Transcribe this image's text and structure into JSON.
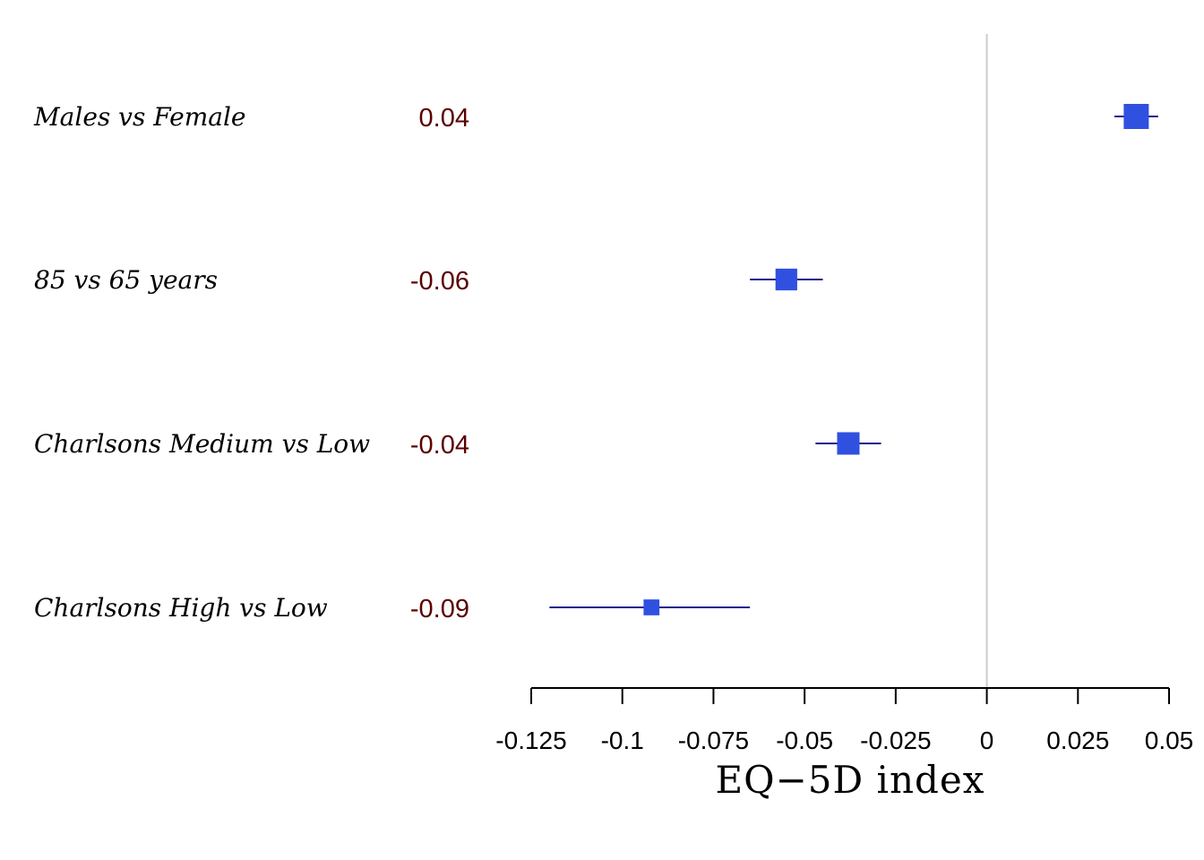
{
  "chart_data": {
    "type": "scatter",
    "subtype": "forest-plot",
    "xlabel": "EQ−5D index",
    "xlim": [
      -0.125,
      0.05
    ],
    "xticks": [
      -0.125,
      -0.1,
      -0.075,
      -0.05,
      -0.025,
      0,
      0.025,
      0.05
    ],
    "xtick_labels": [
      "-0.125",
      "-0.1",
      "-0.075",
      "-0.05",
      "-0.025",
      "0",
      "0.025",
      "0.05"
    ],
    "reference_line": 0,
    "grid": false,
    "rows": [
      {
        "label": "Males vs Female",
        "value_text": "0.04",
        "estimate": 0.041,
        "ci_low": 0.035,
        "ci_high": 0.047,
        "weight": 1.0
      },
      {
        "label": "85 vs 65 years",
        "value_text": "-0.06",
        "estimate": -0.055,
        "ci_low": -0.065,
        "ci_high": -0.045,
        "weight": 0.75
      },
      {
        "label": "Charlsons Medium vs Low",
        "value_text": "-0.04",
        "estimate": -0.038,
        "ci_low": -0.047,
        "ci_high": -0.029,
        "weight": 0.8
      },
      {
        "label": "Charlsons High vs Low",
        "value_text": "-0.09",
        "estimate": -0.092,
        "ci_low": -0.12,
        "ci_high": -0.065,
        "weight": 0.4
      }
    ],
    "colors": {
      "marker": "#3050e0",
      "ci_line": "#1a1a8c",
      "value_text": "#5a0000",
      "reference_line": "#cccccc",
      "axis": "#000000"
    }
  }
}
